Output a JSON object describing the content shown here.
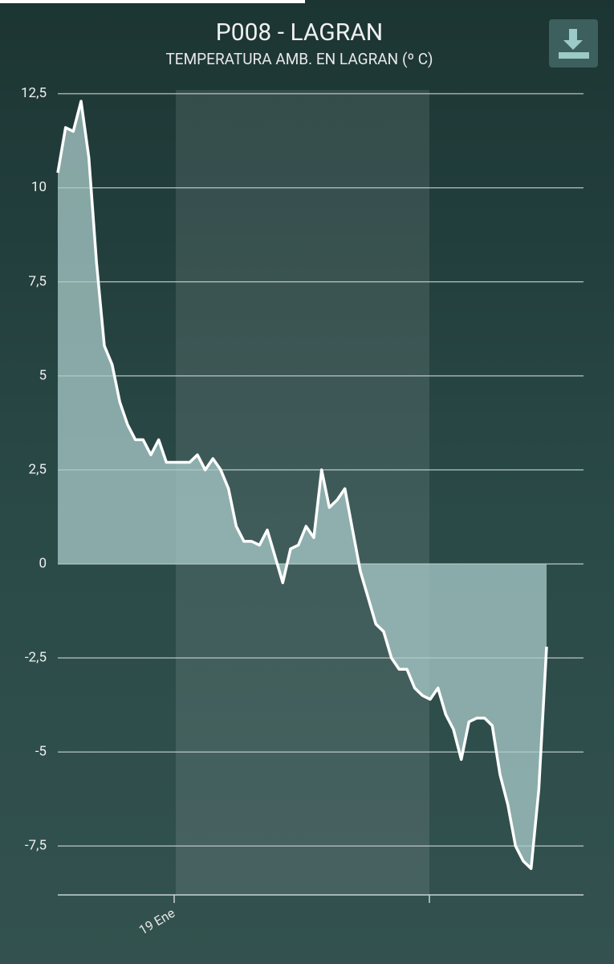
{
  "chart_data": {
    "type": "area-line",
    "title": "P008 - LAGRAN",
    "subtitle": "TEMPERATURA AMB. EN LAGRAN (º C)",
    "categories": [
      null,
      null,
      null,
      null,
      null,
      null,
      null,
      null,
      null,
      null,
      null,
      null,
      null,
      null,
      null,
      "19 Ene",
      null,
      null,
      null,
      null,
      null,
      null,
      null,
      null,
      null,
      null,
      null,
      null,
      null,
      null,
      null,
      null,
      null,
      null,
      null,
      null,
      null,
      null,
      null,
      null,
      null,
      null,
      null,
      null,
      null,
      null,
      null,
      null,
      null,
      null,
      null,
      null,
      null,
      null,
      null,
      null,
      null,
      null,
      null,
      null,
      null,
      null,
      null,
      null
    ],
    "values": [
      10.4,
      11.6,
      11.5,
      12.3,
      10.8,
      8.0,
      5.8,
      5.3,
      4.3,
      3.7,
      3.3,
      3.3,
      2.9,
      3.3,
      2.7,
      2.7,
      2.7,
      2.7,
      2.9,
      2.5,
      2.8,
      2.5,
      2.0,
      1.0,
      0.6,
      0.6,
      0.5,
      0.9,
      0.2,
      -0.5,
      0.4,
      0.5,
      1.0,
      0.7,
      2.5,
      1.5,
      1.7,
      2.0,
      0.9,
      -0.2,
      -0.9,
      -1.6,
      -1.8,
      -2.5,
      -2.8,
      -2.8,
      -3.3,
      -3.5,
      -3.6,
      -3.3,
      -4.0,
      -4.4,
      -5.2,
      -4.2,
      -4.1,
      -4.1,
      -4.3,
      -5.6,
      -6.4,
      -7.5,
      -7.9,
      -8.1,
      -6.0,
      -2.2
    ],
    "color": "#ffffff",
    "fill": "#a9cbc9",
    "ylim": [
      -8.8,
      12.6
    ],
    "yticks": [
      {
        "value": 12.5,
        "label": "12,5"
      },
      10,
      {
        "value": 7.5,
        "label": "7,5"
      },
      5,
      {
        "value": 2.5,
        "label": "2,5"
      },
      0,
      {
        "value": -2.5,
        "label": "-2,5"
      },
      -5,
      {
        "value": -7.5,
        "label": "-7,5"
      }
    ],
    "grid": true
  }
}
